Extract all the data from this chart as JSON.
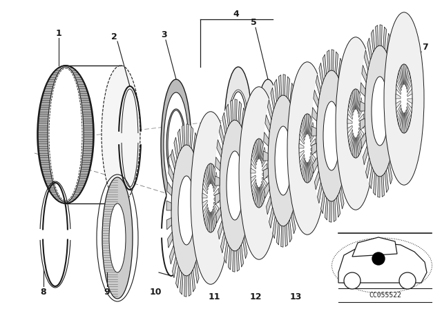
{
  "bg_color": "#ffffff",
  "line_color": "#1a1a1a",
  "fig_width": 6.4,
  "fig_height": 4.48,
  "dpi": 100,
  "code_text": "CC055522"
}
